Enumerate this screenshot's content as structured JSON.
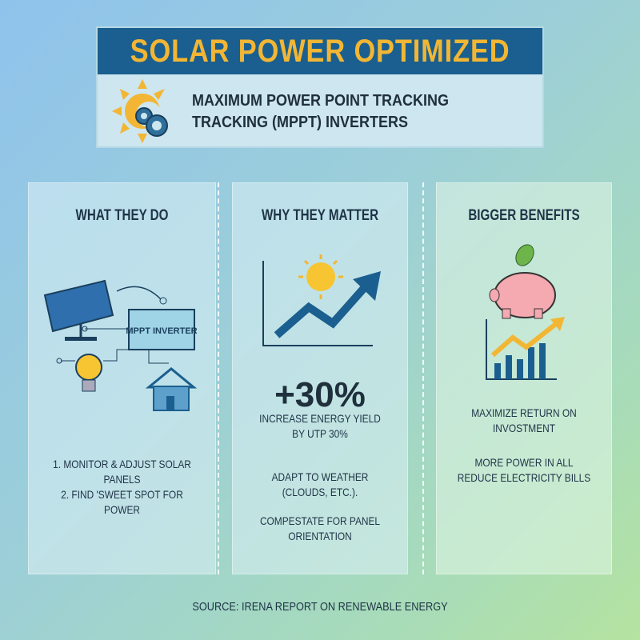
{
  "header": {
    "title": "SOLAR POWER OPTIMIZED",
    "subtitle_line1": "MAXIMUM POWER POINT TRACKING",
    "subtitle_line2": "TRACKING (MPPT) INVERTERS"
  },
  "columns": [
    {
      "heading": "WHAT THEY DO",
      "diagram_label": "MPPT INVERTER",
      "lines": [
        "1. MONITOR & ADJUST SOLAR PANELS",
        "2. FIND 'SWEET SPOT FOR POWER"
      ]
    },
    {
      "heading": "WHY THEY MATTER",
      "stat": "+30%",
      "items": [
        [
          "INCREASE ENERGY YIELD",
          "BY UTP 30%"
        ],
        [
          "ADAPT TO WEATHER",
          "(CLOUDS, ETC.)."
        ],
        [
          "COMPESTATE FOR PANEL",
          "ORIENTATION"
        ]
      ]
    },
    {
      "heading": "BIGGER BENEFITS",
      "items": [
        [
          "MAXIMIZE RETURN ON",
          "INVOSTMENT"
        ],
        [
          "MORE POWER IN ALL",
          "REDUCE ELECTRICITY BILLS"
        ]
      ]
    }
  ],
  "source": "SOURCE: IRENA REPORT ON RENEWABLE ENERGY",
  "colors": {
    "navy": "#1a5f8f",
    "gold": "#f2b634"
  }
}
